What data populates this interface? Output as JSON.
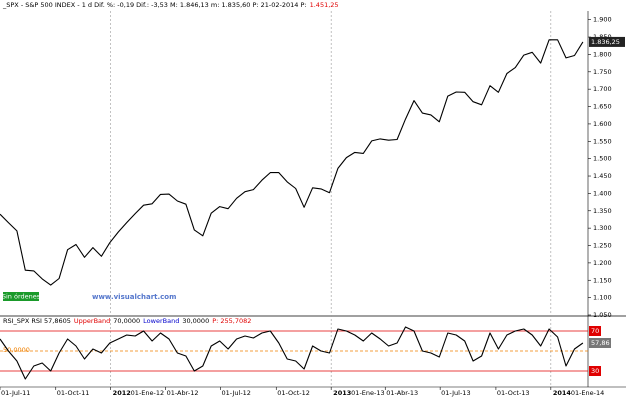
{
  "chart_data": [
    {
      "type": "line",
      "title": "_SPX - S&P 500 INDEX - 1 d  Dif. %: -0,19  Dif.: -3,53  M: 1.846,13  m: 1.835,60  P: 21-02-2014  P:",
      "title_note": "1.451,25",
      "color": "#000000",
      "values": [
        1340,
        1316,
        1292,
        1179,
        1177,
        1154,
        1136,
        1155,
        1238,
        1253,
        1216,
        1244,
        1219,
        1258,
        1289,
        1316,
        1342,
        1366,
        1370,
        1397,
        1398,
        1378,
        1369,
        1295,
        1278,
        1343,
        1362,
        1356,
        1386,
        1405,
        1411,
        1438,
        1460,
        1460,
        1433,
        1414,
        1360,
        1416,
        1413,
        1402,
        1472,
        1503,
        1518,
        1515,
        1551,
        1557,
        1553,
        1555,
        1614,
        1667,
        1631,
        1626,
        1606,
        1680,
        1692,
        1691,
        1664,
        1655,
        1710,
        1691,
        1745,
        1762,
        1798,
        1806,
        1775,
        1842,
        1842,
        1790,
        1797,
        1836
      ],
      "last_value_label": "1.836,25",
      "orders_label": "Sin órdenes",
      "watermark": "www.visualchart.com",
      "xlim": [
        0,
        69.6
      ],
      "xticks": [
        {
          "value": 0,
          "label": "01-Jul-11"
        },
        {
          "value": 6.6,
          "label": "01-Oct-11"
        },
        {
          "value": 13.1,
          "label": "01-Ene-12"
        },
        {
          "value": 19.6,
          "label": "01-Abr-12"
        },
        {
          "value": 26.1,
          "label": "01-Jul-12"
        },
        {
          "value": 32.7,
          "label": "01-Oct-12"
        },
        {
          "value": 39.2,
          "label": "01-Ene-13"
        },
        {
          "value": 45.6,
          "label": "01-Abr-13"
        },
        {
          "value": 52.1,
          "label": "01-Jul-13"
        },
        {
          "value": 58.7,
          "label": "01-Oct-13"
        },
        {
          "value": 65.2,
          "label": "01-Ene-14"
        }
      ],
      "year_ticks": [
        {
          "value": 13.1,
          "label": "2012"
        },
        {
          "value": 39.2,
          "label": "2013"
        },
        {
          "value": 65.2,
          "label": "2014"
        }
      ],
      "ylim": [
        1050,
        1925
      ],
      "yticks": [
        {
          "value": 1900,
          "label": "1.900"
        },
        {
          "value": 1850,
          "label": "1.850"
        },
        {
          "value": 1800,
          "label": "1.800"
        },
        {
          "value": 1750,
          "label": "1.750"
        },
        {
          "value": 1700,
          "label": "1.700"
        },
        {
          "value": 1650,
          "label": "1.650"
        },
        {
          "value": 1600,
          "label": "1.600"
        },
        {
          "value": 1550,
          "label": "1.550"
        },
        {
          "value": 1500,
          "label": "1.500"
        },
        {
          "value": 1450,
          "label": "1.450"
        },
        {
          "value": 1400,
          "label": "1.400"
        },
        {
          "value": 1350,
          "label": "1.350"
        },
        {
          "value": 1300,
          "label": "1.300"
        },
        {
          "value": 1250,
          "label": "1.250"
        },
        {
          "value": 1200,
          "label": "1.200"
        },
        {
          "value": 1150,
          "label": "1.150"
        },
        {
          "value": 1100,
          "label": "1.100"
        },
        {
          "value": 1050,
          "label": "1.050"
        }
      ]
    },
    {
      "type": "line",
      "title": "RSI_SPX RSI  57,8605",
      "subtitle": "P: 255,7082",
      "color": "#000000",
      "values": [
        62,
        50,
        40,
        22,
        35,
        38,
        30,
        48,
        62,
        55,
        42,
        52,
        48,
        58,
        62,
        66,
        65,
        70,
        60,
        68,
        62,
        48,
        45,
        30,
        35,
        55,
        60,
        52,
        62,
        65,
        63,
        68,
        70,
        58,
        42,
        40,
        32,
        55,
        50,
        48,
        72,
        70,
        66,
        60,
        68,
        62,
        55,
        58,
        74,
        70,
        50,
        48,
        44,
        68,
        66,
        60,
        40,
        45,
        68,
        52,
        66,
        70,
        72,
        66,
        55,
        72,
        64,
        35,
        52,
        58
      ],
      "last_value_label": "57,86",
      "bands": [
        {
          "name": "UpperBand",
          "value": 70,
          "label": "70,0000",
          "color": "#e00000"
        },
        {
          "name": "LowerBand",
          "value": 30,
          "label": "30,0000",
          "color": "#0000cc"
        }
      ],
      "midline": {
        "value": 50,
        "label": "50,0000",
        "color": "#f08000"
      },
      "ylim": [
        16,
        84
      ]
    }
  ]
}
